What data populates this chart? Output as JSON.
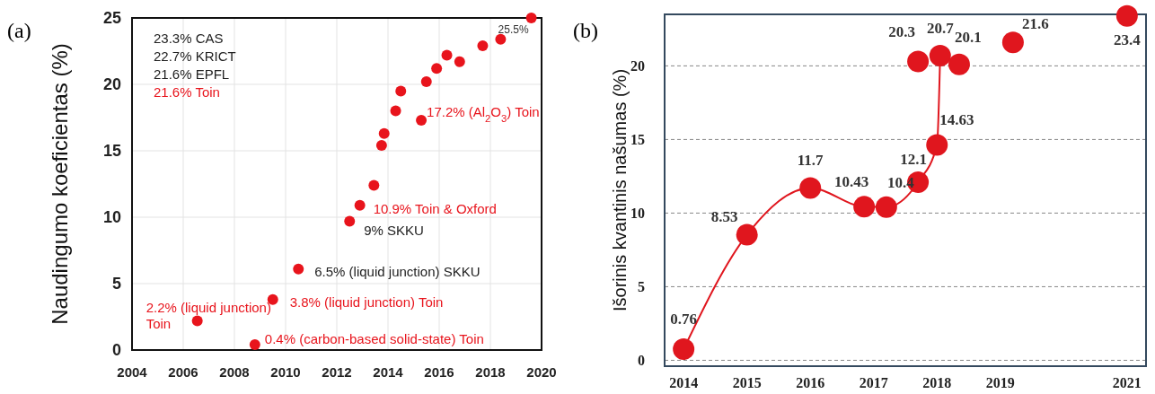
{
  "chart_data": [
    {
      "type": "scatter",
      "title": "(a)",
      "ylabel": "Naudingumo koeficientas (%)",
      "xlim": [
        2004,
        2020
      ],
      "ylim": [
        0,
        25
      ],
      "xticks": [
        2004,
        2006,
        2008,
        2010,
        2012,
        2014,
        2016,
        2018,
        2020
      ],
      "yticks": [
        0,
        5,
        10,
        15,
        20,
        25
      ],
      "grid": true,
      "marker": "circle",
      "series": [
        {
          "color": "#e8141c",
          "x": [
            2006.55,
            2008.8,
            2009.5,
            2010.5,
            2012.5,
            2012.9,
            2013.45,
            2013.75,
            2013.85,
            2014.3,
            2014.5,
            2015.3,
            2015.5,
            2015.9,
            2016.3,
            2016.8,
            2017.7,
            2018.4,
            2019.6
          ],
          "values": [
            2.2,
            0.4,
            3.8,
            6.1,
            9.7,
            10.9,
            12.4,
            15.4,
            16.3,
            18.0,
            19.5,
            17.3,
            20.2,
            21.2,
            22.2,
            21.7,
            22.9,
            23.4,
            25.0
          ]
        }
      ],
      "annotations": [
        "23.3% CAS",
        "22.7% KRICT",
        "21.6% EPFL",
        "21.6% Toin",
        {
          "text": "25.5%",
          "x": 2019.6,
          "y": 25.0
        },
        {
          "text": "17.2% (Al$_{2}$O$_{3}$) Toin",
          "x": 2015.3,
          "y": 17.3
        },
        {
          "text": "10.9% Toin & Oxford",
          "x": 2012.9,
          "y": 10.9
        },
        {
          "text": "9% SKKU",
          "x": 2012.5,
          "y": 9.7
        },
        {
          "text": "6.5% (liquid junction) SKKU",
          "x": 2010.5,
          "y": 6.1
        },
        {
          "text": "3.8% (liquid junction) Toin",
          "x": 2009.5,
          "y": 3.8
        },
        {
          "text": "2.2% (liquid junction)\nToin",
          "x": 2006.55,
          "y": 2.2
        },
        {
          "text": "0.4% (carbon-based solid-state) Toin",
          "x": 2008.8,
          "y": 0.4
        }
      ]
    },
    {
      "type": "line",
      "title": "(b)",
      "ylabel": "Išorinis kvantinis našumas (%)",
      "xlim": [
        2013.7,
        2021.3
      ],
      "ylim": [
        -0.4,
        23.5
      ],
      "xticks": [
        2014,
        2015,
        2016,
        2017,
        2018,
        2019,
        2021
      ],
      "yticks": [
        0,
        5,
        10,
        15,
        20
      ],
      "grid": "y",
      "marker": "circle",
      "data_labels": true,
      "series": [
        {
          "color": "#e0161e",
          "x": [
            2014,
            2015,
            2016,
            2016.85,
            2017.2,
            2017.7,
            2018,
            2018.05
          ],
          "values": [
            0.76,
            8.53,
            11.7,
            10.43,
            10.4,
            12.1,
            14.63,
            20.7
          ]
        },
        {
          "type": "scatter",
          "color": "#e0161e",
          "x": [
            2017.7,
            2018.35,
            2019.2,
            2021
          ],
          "values": [
            20.3,
            20.1,
            21.6,
            23.4
          ]
        }
      ]
    }
  ]
}
